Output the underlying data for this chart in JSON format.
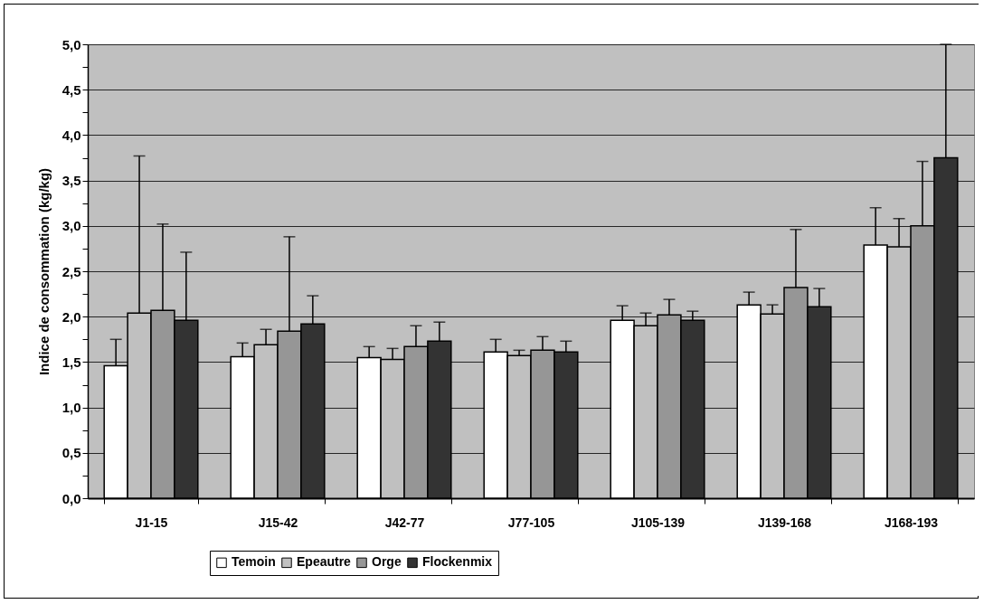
{
  "chart_data": {
    "type": "bar",
    "ylabel": "Indice de consommation (kg/kg)",
    "categories": [
      "J1-15",
      "J15-42",
      "J42-77",
      "J77-105",
      "J105-139",
      "J139-168",
      "J168-193"
    ],
    "series": [
      {
        "name": "Temoin",
        "color": "#ffffff",
        "values": [
          1.46,
          1.56,
          1.55,
          1.61,
          1.96,
          2.13,
          2.79
        ],
        "errors": [
          [
            1.46,
            1.75
          ],
          [
            1.56,
            1.71
          ],
          [
            1.55,
            1.67
          ],
          [
            1.61,
            1.75
          ],
          [
            1.96,
            2.12
          ],
          [
            2.13,
            2.27
          ],
          [
            2.79,
            3.2
          ]
        ]
      },
      {
        "name": "Epeautre",
        "color": "#c0c0c0",
        "values": [
          2.04,
          1.69,
          1.53,
          1.57,
          1.9,
          2.03,
          2.77
        ],
        "errors": [
          [
            2.04,
            3.77
          ],
          [
            1.69,
            1.86
          ],
          [
            1.53,
            1.65
          ],
          [
            1.57,
            1.63
          ],
          [
            1.9,
            2.04
          ],
          [
            2.03,
            2.13
          ],
          [
            2.77,
            3.08
          ]
        ]
      },
      {
        "name": "Orge",
        "color": "#969696",
        "values": [
          2.07,
          1.84,
          1.67,
          1.63,
          2.02,
          2.32,
          3.0
        ],
        "errors": [
          [
            2.07,
            3.02
          ],
          [
            1.84,
            2.88
          ],
          [
            1.67,
            1.9
          ],
          [
            1.63,
            1.78
          ],
          [
            2.02,
            2.19
          ],
          [
            2.32,
            2.96
          ],
          [
            3.0,
            3.71
          ]
        ]
      },
      {
        "name": "Flockenmix",
        "color": "#333333",
        "values": [
          1.96,
          1.92,
          1.73,
          1.61,
          1.96,
          2.11,
          3.75
        ],
        "errors": [
          [
            1.96,
            2.71
          ],
          [
            1.92,
            2.23
          ],
          [
            1.73,
            1.94
          ],
          [
            1.61,
            1.73
          ],
          [
            1.96,
            2.06
          ],
          [
            2.11,
            2.31
          ],
          [
            3.75,
            5.0
          ]
        ]
      }
    ],
    "ylim": [
      0,
      5
    ],
    "yticks": [
      {
        "value": 0,
        "label": "0,0"
      },
      {
        "value": 0.25,
        "label": null
      },
      {
        "value": 0.5,
        "label": "0,5"
      },
      {
        "value": 0.75,
        "label": null
      },
      {
        "value": 1,
        "label": "1,0"
      },
      {
        "value": 1.25,
        "label": null
      },
      {
        "value": 1.5,
        "label": "1,5"
      },
      {
        "value": 1.75,
        "label": null
      },
      {
        "value": 2,
        "label": "2,0"
      },
      {
        "value": 2.25,
        "label": null
      },
      {
        "value": 2.5,
        "label": "2,5"
      },
      {
        "value": 2.75,
        "label": null
      },
      {
        "value": 3,
        "label": "3,0"
      },
      {
        "value": 3.25,
        "label": null
      },
      {
        "value": 3.5,
        "label": "3,5"
      },
      {
        "value": 3.75,
        "label": null
      },
      {
        "value": 4,
        "label": "4,0"
      },
      {
        "value": 4.25,
        "label": null
      },
      {
        "value": 4.5,
        "label": "4,5"
      },
      {
        "value": 4.75,
        "label": null
      },
      {
        "value": 5,
        "label": "5,0"
      }
    ],
    "grid": "y",
    "legend": "bottom"
  }
}
